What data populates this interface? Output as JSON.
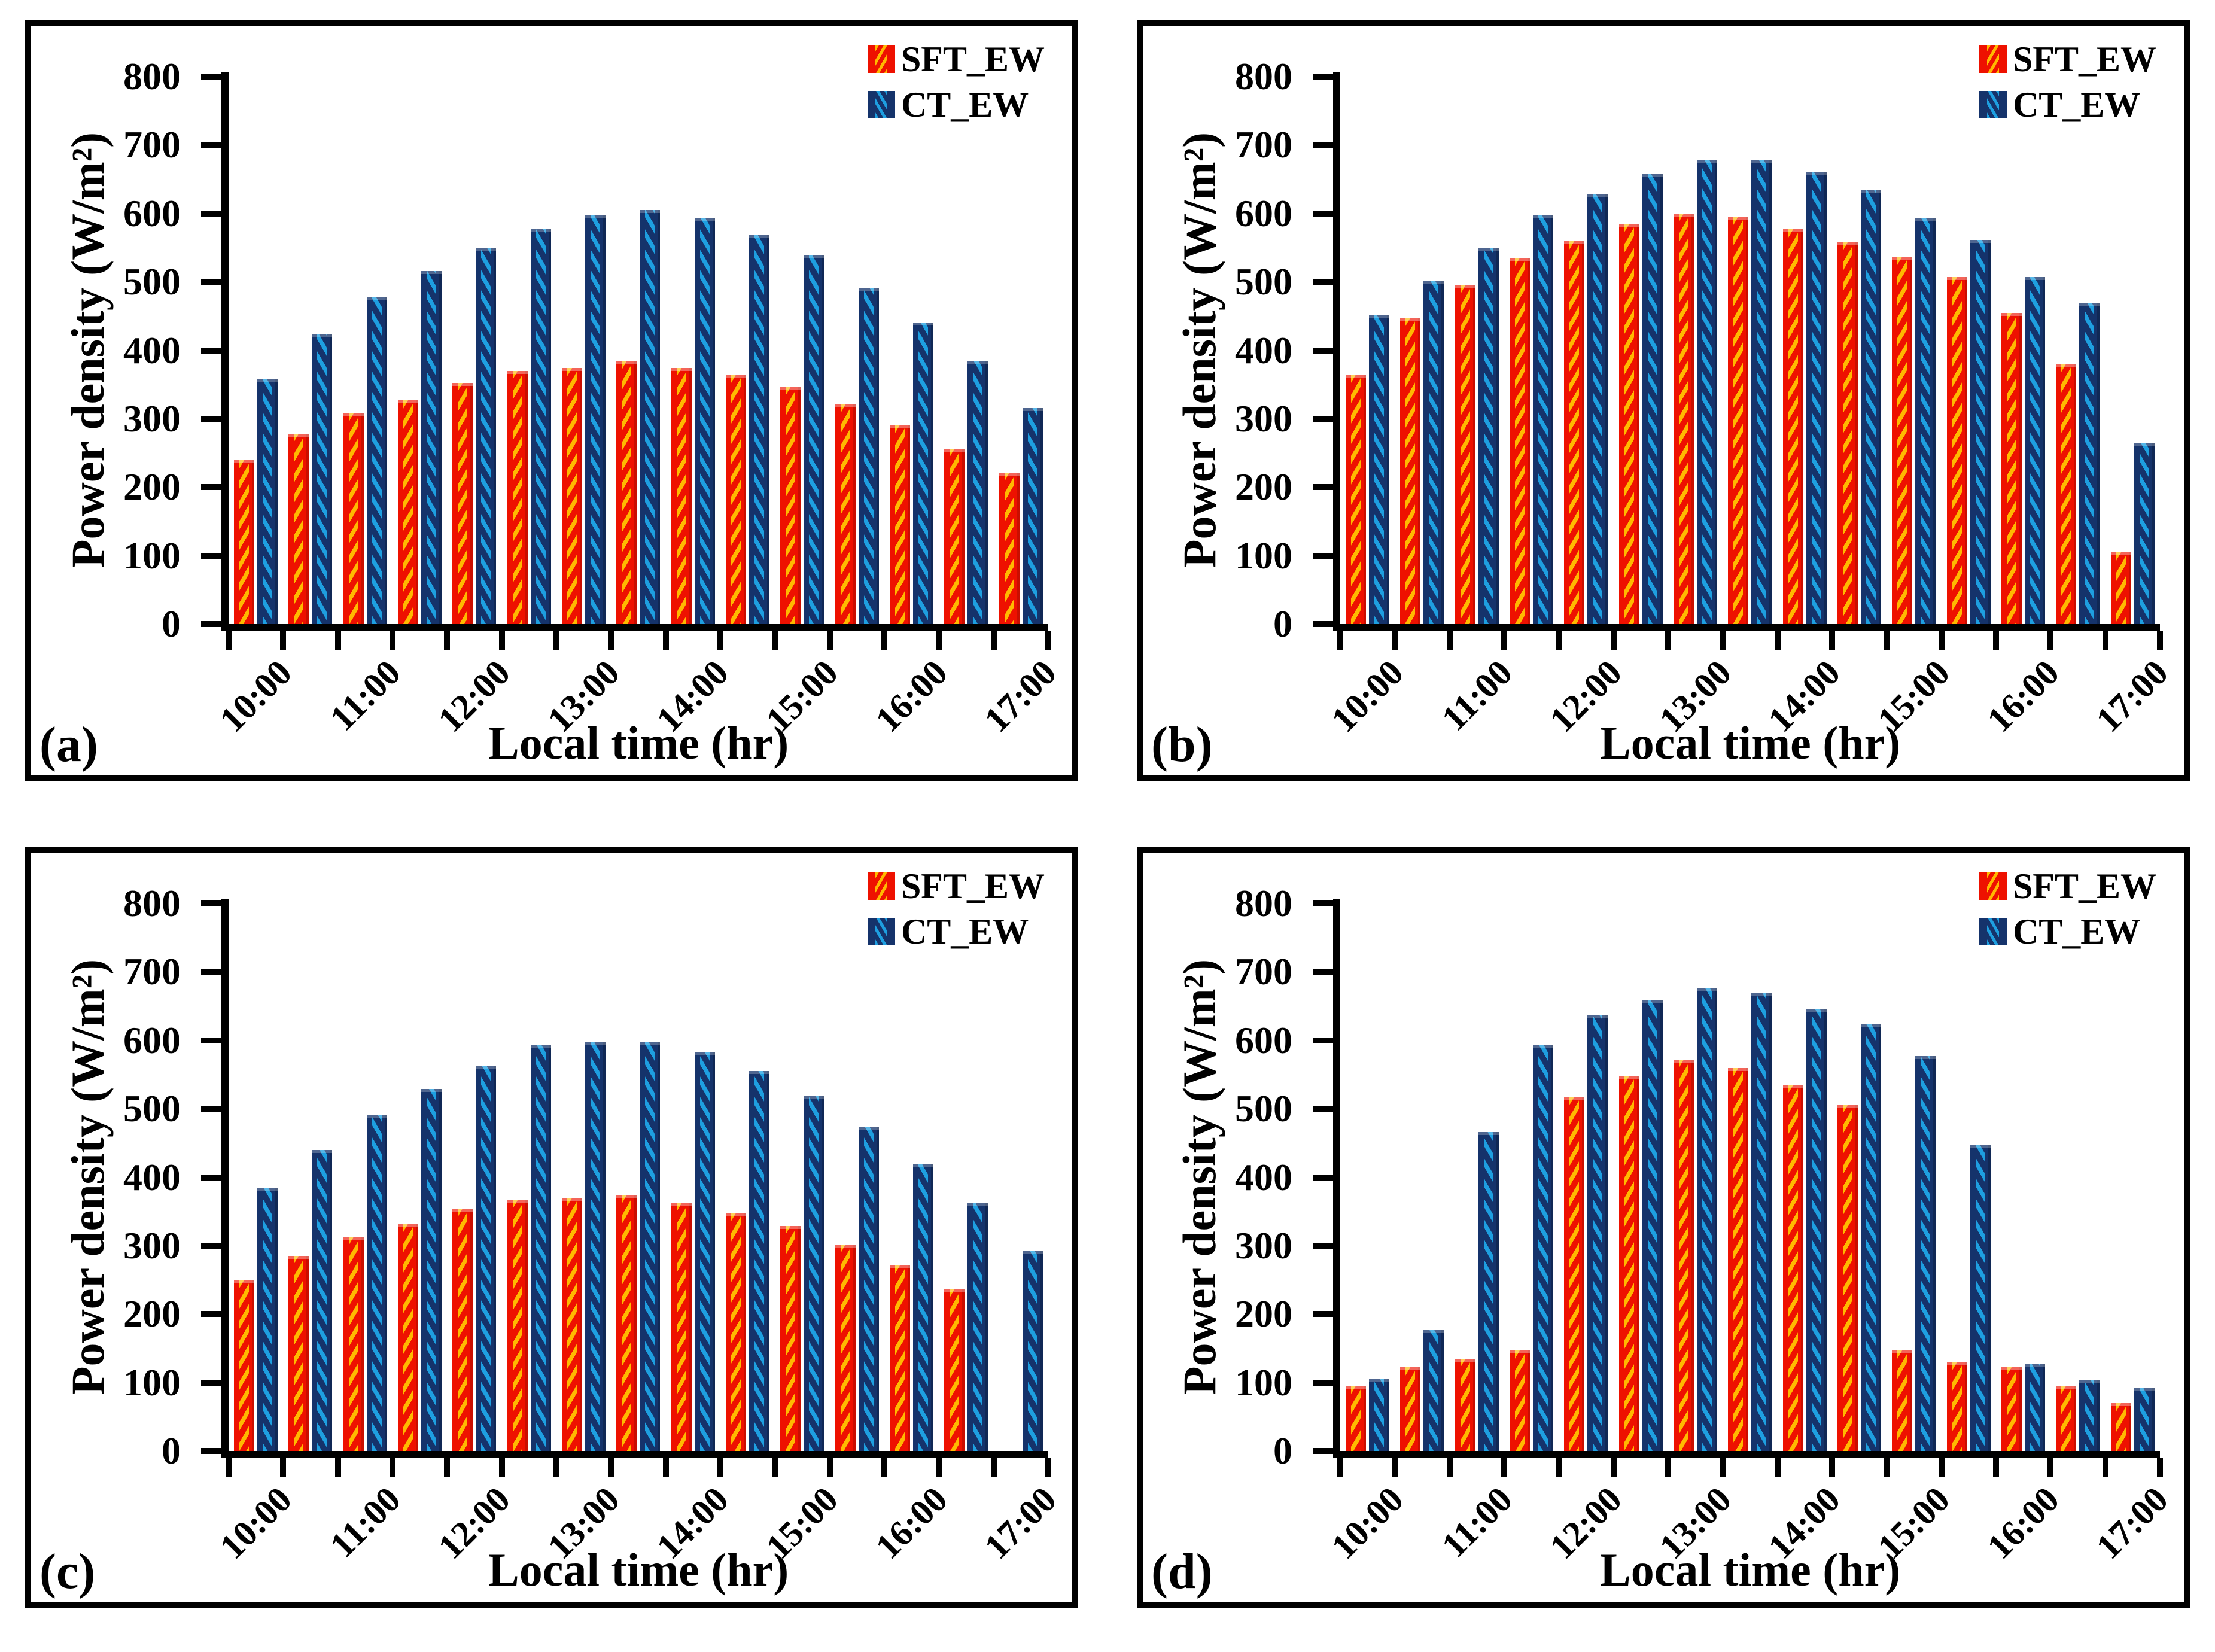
{
  "figure": {
    "background": "#ffffff",
    "panel_letters": [
      "(a)",
      "(b)",
      "(c)",
      "(d)"
    ]
  },
  "styles": {
    "sft_fill": "#ee1100",
    "sft_hatch": "#ffb900",
    "ct_fill": "#15336b",
    "ct_hatch": "#1e9fe0",
    "axis_color": "#000000",
    "text_color": "#000000"
  },
  "chart_data": [
    {
      "id": "a",
      "panel_label": "(a)",
      "type": "bar",
      "title": "",
      "xlabel": "Local time (hr)",
      "ylabel": "Power density (W/m²)",
      "ylim": [
        0,
        800
      ],
      "ytick_interval": 100,
      "ytick_labels": [
        "0",
        "100",
        "200",
        "300",
        "400",
        "500",
        "600",
        "700",
        "800"
      ],
      "grid": false,
      "legend_position": "top-right",
      "x": [
        "10:00",
        "10:30",
        "11:00",
        "11:30",
        "12:00",
        "12:30",
        "13:00",
        "13:30",
        "14:00",
        "14:30",
        "15:00",
        "15:30",
        "16:00",
        "16:30",
        "17:00"
      ],
      "xtick_labels": [
        "10:00",
        "11:00",
        "12:00",
        "13:00",
        "14:00",
        "15:00",
        "16:00",
        "17:00"
      ],
      "series": [
        {
          "name": "SFT_EW",
          "values": [
            240,
            278,
            308,
            327,
            352,
            370,
            374,
            384,
            374,
            365,
            346,
            321,
            291,
            256,
            221
          ]
        },
        {
          "name": "CT_EW",
          "values": [
            358,
            424,
            477,
            516,
            550,
            578,
            598,
            605,
            594,
            569,
            539,
            491,
            441,
            384,
            316
          ]
        }
      ]
    },
    {
      "id": "b",
      "panel_label": "(b)",
      "type": "bar",
      "title": "",
      "xlabel": "Local time (hr)",
      "ylabel": "Power density (W/m²)",
      "ylim": [
        0,
        800
      ],
      "ytick_interval": 100,
      "ytick_labels": [
        "0",
        "100",
        "200",
        "300",
        "400",
        "500",
        "600",
        "700",
        "800"
      ],
      "grid": false,
      "legend_position": "top-right",
      "x": [
        "10:00",
        "10:30",
        "11:00",
        "11:30",
        "12:00",
        "12:30",
        "13:00",
        "13:30",
        "14:00",
        "14:30",
        "15:00",
        "15:30",
        "16:00",
        "16:30",
        "17:00"
      ],
      "xtick_labels": [
        "10:00",
        "11:00",
        "12:00",
        "13:00",
        "14:00",
        "15:00",
        "16:00",
        "17:00"
      ],
      "series": [
        {
          "name": "SFT_EW",
          "values": [
            365,
            448,
            495,
            535,
            560,
            585,
            600,
            595,
            577,
            558,
            537,
            507,
            455,
            380,
            105
          ]
        },
        {
          "name": "CT_EW",
          "values": [
            452,
            501,
            550,
            598,
            628,
            658,
            678,
            678,
            661,
            635,
            593,
            561,
            507,
            469,
            265
          ]
        }
      ]
    },
    {
      "id": "c",
      "panel_label": "(c)",
      "type": "bar",
      "title": "",
      "xlabel": "Local time (hr)",
      "ylabel": "Power density (W/m²)",
      "ylim": [
        0,
        800
      ],
      "ytick_interval": 100,
      "ytick_labels": [
        "0",
        "100",
        "200",
        "300",
        "400",
        "500",
        "600",
        "700",
        "800"
      ],
      "grid": false,
      "legend_position": "top-right",
      "x": [
        "10:00",
        "10:30",
        "11:00",
        "11:30",
        "12:00",
        "12:30",
        "13:00",
        "13:30",
        "14:00",
        "14:30",
        "15:00",
        "15:30",
        "16:00",
        "16:30",
        "17:00"
      ],
      "xtick_labels": [
        "10:00",
        "11:00",
        "12:00",
        "13:00",
        "14:00",
        "15:00",
        "16:00",
        "17:00"
      ],
      "series": [
        {
          "name": "SFT_EW",
          "values": [
            250,
            285,
            313,
            332,
            354,
            366,
            370,
            373,
            362,
            348,
            329,
            302,
            271,
            236,
            0
          ]
        },
        {
          "name": "CT_EW",
          "values": [
            385,
            440,
            491,
            529,
            562,
            593,
            597,
            598,
            583,
            555,
            519,
            473,
            419,
            362,
            293
          ]
        }
      ]
    },
    {
      "id": "d",
      "panel_label": "(d)",
      "type": "bar",
      "title": "",
      "xlabel": "Local time (hr)",
      "ylabel": "Power density (W/m²)",
      "ylim": [
        0,
        800
      ],
      "ytick_interval": 100,
      "ytick_labels": [
        "0",
        "100",
        "200",
        "300",
        "400",
        "500",
        "600",
        "700",
        "800"
      ],
      "grid": false,
      "legend_position": "top-right",
      "x": [
        "10:00",
        "10:30",
        "11:00",
        "11:30",
        "12:00",
        "12:30",
        "13:00",
        "13:30",
        "14:00",
        "14:30",
        "15:00",
        "15:30",
        "16:00",
        "16:30",
        "17:00"
      ],
      "xtick_labels": [
        "10:00",
        "11:00",
        "12:00",
        "13:00",
        "14:00",
        "15:00",
        "16:00",
        "17:00"
      ],
      "series": [
        {
          "name": "SFT_EW",
          "values": [
            95,
            122,
            135,
            147,
            518,
            548,
            572,
            560,
            535,
            505,
            147,
            130,
            122,
            95,
            70
          ]
        },
        {
          "name": "CT_EW",
          "values": [
            106,
            177,
            466,
            594,
            637,
            658,
            676,
            670,
            646,
            624,
            577,
            447,
            128,
            104,
            93
          ]
        }
      ]
    }
  ]
}
